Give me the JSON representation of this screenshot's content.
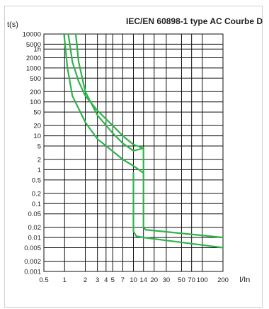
{
  "chart_data": {
    "type": "line",
    "title": "IEC/EN 60898-1 type AC Courbe D",
    "xlabel": "I/In",
    "ylabel": "t(s)",
    "xscale": "log",
    "yscale": "log",
    "grid": true,
    "xlim": [
      0.5,
      200
    ],
    "ylim": [
      0.001,
      10000
    ],
    "xticks": [
      {
        "value": 0.5,
        "label": "0.5"
      },
      {
        "value": 1,
        "label": "1"
      },
      {
        "value": 2,
        "label": "2"
      },
      {
        "value": 3,
        "label": "3"
      },
      {
        "value": 4,
        "label": "4"
      },
      {
        "value": 5,
        "label": "5"
      },
      {
        "value": 7,
        "label": "7"
      },
      {
        "value": 10,
        "label": "10"
      },
      {
        "value": 14,
        "label": "14"
      },
      {
        "value": 20,
        "label": "20"
      },
      {
        "value": 30,
        "label": "30"
      },
      {
        "value": 50,
        "label": "50"
      },
      {
        "value": 70,
        "label": "70"
      },
      {
        "value": 100,
        "label": "100"
      },
      {
        "value": 200,
        "label": "200"
      }
    ],
    "yticks": [
      {
        "value": 10000,
        "label": "10000"
      },
      {
        "value": 5000,
        "label": "5000"
      },
      {
        "value": 3600,
        "label": "1h"
      },
      {
        "value": 2000,
        "label": "2000"
      },
      {
        "value": 1000,
        "label": "1000"
      },
      {
        "value": 500,
        "label": "500"
      },
      {
        "value": 200,
        "label": "200"
      },
      {
        "value": 100,
        "label": "100"
      },
      {
        "value": 50,
        "label": "50"
      },
      {
        "value": 20,
        "label": "20"
      },
      {
        "value": 10,
        "label": "10"
      },
      {
        "value": 5,
        "label": "5"
      },
      {
        "value": 2,
        "label": "2"
      },
      {
        "value": 1,
        "label": "1"
      },
      {
        "value": 0.5,
        "label": "0.5"
      },
      {
        "value": 0.2,
        "label": "0.2"
      },
      {
        "value": 0.1,
        "label": "0.1"
      },
      {
        "value": 0.05,
        "label": "0.05"
      },
      {
        "value": 0.02,
        "label": "0.02"
      },
      {
        "value": 0.01,
        "label": "0.01"
      },
      {
        "value": 0.005,
        "label": "0.005"
      },
      {
        "value": 0.002,
        "label": "0.002"
      },
      {
        "value": 0.001,
        "label": "0.001"
      }
    ],
    "series_color": "#2db44a",
    "series": [
      {
        "points": [
          [
            1.13,
            10000
          ],
          [
            1.3,
            1500
          ],
          [
            1.6,
            400
          ],
          [
            2,
            150
          ],
          [
            3,
            55
          ],
          [
            5,
            20
          ],
          [
            7,
            10
          ],
          [
            10,
            5.5
          ],
          [
            14,
            4.3
          ],
          [
            14,
            0.02
          ],
          [
            15,
            0.017
          ],
          [
            20,
            0.016
          ],
          [
            200,
            0.01
          ]
        ]
      },
      {
        "points": [
          [
            1.45,
            10000
          ],
          [
            1.6,
            1500
          ],
          [
            2,
            200
          ],
          [
            3,
            40
          ],
          [
            5,
            12
          ],
          [
            7,
            6
          ],
          [
            10,
            3.6
          ],
          [
            14,
            4.3
          ]
        ]
      },
      {
        "points": [
          [
            0.98,
            10000
          ],
          [
            1.1,
            1000
          ],
          [
            1.3,
            150
          ],
          [
            2,
            25
          ],
          [
            3,
            8
          ],
          [
            5,
            3.5
          ],
          [
            7,
            2
          ],
          [
            10,
            1.3
          ],
          [
            14,
            0.8
          ]
        ]
      },
      {
        "points": [
          [
            10,
            0.8
          ],
          [
            10,
            0.015
          ],
          [
            11,
            0.011
          ],
          [
            14,
            0.01
          ],
          [
            200,
            0.005
          ]
        ]
      }
    ]
  }
}
